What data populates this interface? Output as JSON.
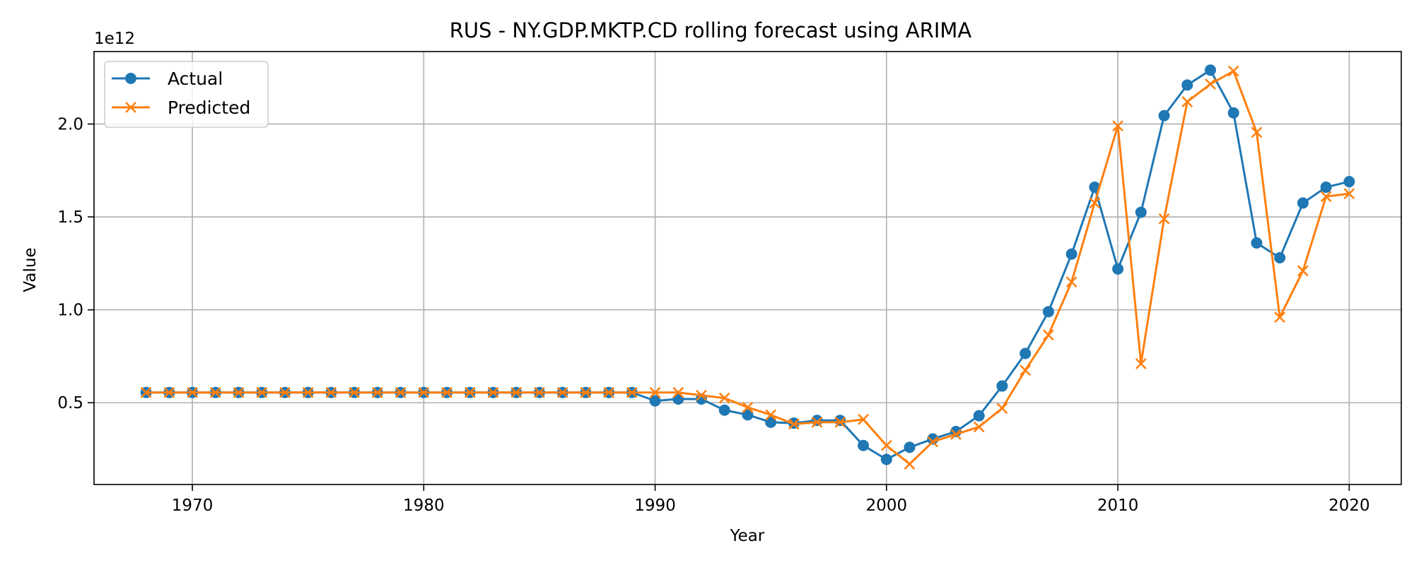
{
  "chart_data": {
    "type": "line",
    "title": "RUS - NY.GDP.MKTP.CD rolling forecast using ARIMA",
    "xlabel": "Year",
    "ylabel": "Value",
    "y_offset_text": "1e12",
    "xlim": [
      1965.75,
      2022.25
    ],
    "ylim": [
      0.06,
      2.39
    ],
    "x_ticks": [
      1970,
      1980,
      1990,
      2000,
      2010,
      2020
    ],
    "y_ticks": [
      0.5,
      1.0,
      1.5,
      2.0
    ],
    "x_tick_labels": [
      "1970",
      "1980",
      "1990",
      "2000",
      "2010",
      "2020"
    ],
    "y_tick_labels": [
      "0.5",
      "1.0",
      "1.5",
      "2.0"
    ],
    "grid": true,
    "legend_position": "upper-left",
    "x": [
      1968,
      1969,
      1970,
      1971,
      1972,
      1973,
      1974,
      1975,
      1976,
      1977,
      1978,
      1979,
      1980,
      1981,
      1982,
      1983,
      1984,
      1985,
      1986,
      1987,
      1988,
      1989,
      1990,
      1991,
      1992,
      1993,
      1994,
      1995,
      1996,
      1997,
      1998,
      1999,
      2000,
      2001,
      2002,
      2003,
      2004,
      2005,
      2006,
      2007,
      2008,
      2009,
      2010,
      2011,
      2012,
      2013,
      2014,
      2015,
      2016,
      2017,
      2018,
      2019,
      2020
    ],
    "series": [
      {
        "name": "Actual",
        "color": "#1f77b4",
        "marker": "circle",
        "values": [
          0.555,
          0.555,
          0.555,
          0.555,
          0.555,
          0.555,
          0.555,
          0.555,
          0.555,
          0.555,
          0.555,
          0.555,
          0.555,
          0.555,
          0.555,
          0.555,
          0.555,
          0.555,
          0.555,
          0.555,
          0.555,
          0.555,
          0.51,
          0.52,
          0.52,
          0.46,
          0.435,
          0.395,
          0.39,
          0.405,
          0.405,
          0.27,
          0.195,
          0.26,
          0.305,
          0.345,
          0.43,
          0.59,
          0.765,
          0.99,
          1.3,
          1.66,
          1.22,
          1.525,
          2.045,
          2.21,
          2.29,
          2.06,
          1.36,
          1.28,
          1.575,
          1.66,
          1.69
        ]
      },
      {
        "name": "Predicted",
        "color": "#ff7f0e",
        "marker": "x",
        "values": [
          0.555,
          0.555,
          0.555,
          0.555,
          0.555,
          0.555,
          0.555,
          0.555,
          0.555,
          0.555,
          0.555,
          0.555,
          0.555,
          0.555,
          0.555,
          0.555,
          0.555,
          0.555,
          0.555,
          0.555,
          0.555,
          0.555,
          0.555,
          0.555,
          0.54,
          0.525,
          0.475,
          0.435,
          0.385,
          0.395,
          0.395,
          0.41,
          0.27,
          0.17,
          0.29,
          0.33,
          0.37,
          0.47,
          0.675,
          0.865,
          1.15,
          1.575,
          1.99,
          0.71,
          1.49,
          2.12,
          2.215,
          2.285,
          1.955,
          0.96,
          1.21,
          1.61,
          1.625
        ]
      }
    ]
  }
}
